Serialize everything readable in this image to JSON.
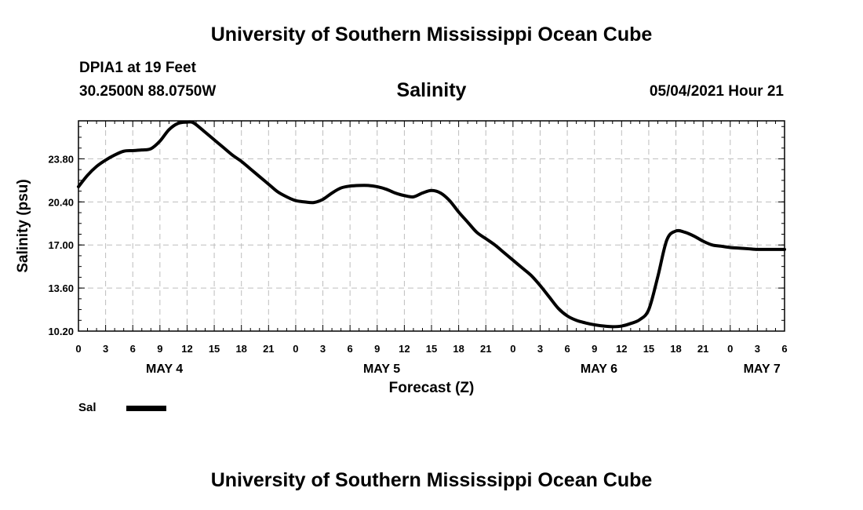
{
  "header": {
    "title_top": "University of Southern Mississippi Ocean Cube",
    "station": "DPIA1 at 19 Feet",
    "coords": "30.2500N  88.0750W",
    "variable_title": "Salinity",
    "datetime": "05/04/2021 Hour 21"
  },
  "footer": {
    "title_bottom": "University of Southern Mississippi Ocean Cube"
  },
  "legend": {
    "label": "Sal",
    "color": "#000000"
  },
  "chart_data": {
    "type": "line",
    "title": "Salinity",
    "xlabel": "Forecast (Z)",
    "ylabel": "Salinity (psu)",
    "x_unit": "hours",
    "xlim": [
      0,
      78
    ],
    "ylim": [
      10.2,
      26.8
    ],
    "yticks": [
      10.2,
      13.6,
      17.0,
      20.4,
      23.8
    ],
    "ytick_labels": [
      "10.20",
      "13.60",
      "17.00",
      "20.40",
      "23.80"
    ],
    "xticks": [
      0,
      3,
      6,
      9,
      12,
      15,
      18,
      21,
      24,
      27,
      30,
      33,
      36,
      39,
      42,
      45,
      48,
      51,
      54,
      57,
      60,
      63,
      66,
      69,
      72,
      75,
      78
    ],
    "xtick_labels": [
      "0",
      "3",
      "6",
      "9",
      "12",
      "15",
      "18",
      "21",
      "0",
      "3",
      "6",
      "9",
      "12",
      "15",
      "18",
      "21",
      "0",
      "3",
      "6",
      "9",
      "12",
      "15",
      "18",
      "21",
      "0",
      "3",
      "6"
    ],
    "day_labels": [
      {
        "label": "MAY 4",
        "x": 9.5
      },
      {
        "label": "MAY 5",
        "x": 33.5
      },
      {
        "label": "MAY 6",
        "x": 57.5
      },
      {
        "label": "MAY 7",
        "x": 75.5
      }
    ],
    "grid": true,
    "series": [
      {
        "name": "Sal",
        "x": [
          0,
          1,
          2,
          3,
          4,
          5,
          6,
          7,
          8,
          9,
          10,
          11,
          12,
          12.5,
          13,
          14,
          15,
          16,
          17,
          18,
          19,
          20,
          21,
          22,
          23,
          24,
          25,
          26,
          27,
          28,
          29,
          30,
          31,
          32,
          33,
          34,
          35,
          36,
          37,
          38,
          39,
          40,
          41,
          42,
          43,
          44,
          45,
          46,
          47,
          48,
          49,
          50,
          51,
          52,
          53,
          54,
          55,
          56,
          57,
          58,
          59,
          60,
          61,
          62,
          63,
          64,
          65,
          66,
          67,
          68,
          69,
          70,
          71,
          72,
          73,
          74,
          75,
          76,
          77,
          78
        ],
        "values": [
          21.6,
          22.5,
          23.2,
          23.7,
          24.1,
          24.4,
          24.45,
          24.5,
          24.6,
          25.2,
          26.1,
          26.6,
          26.7,
          26.7,
          26.5,
          25.9,
          25.3,
          24.7,
          24.1,
          23.6,
          23.0,
          22.4,
          21.8,
          21.2,
          20.8,
          20.5,
          20.4,
          20.35,
          20.6,
          21.1,
          21.5,
          21.65,
          21.7,
          21.7,
          21.6,
          21.4,
          21.1,
          20.9,
          20.8,
          21.1,
          21.3,
          21.1,
          20.5,
          19.6,
          18.8,
          18.0,
          17.5,
          17.0,
          16.4,
          15.8,
          15.2,
          14.6,
          13.8,
          12.9,
          12.0,
          11.4,
          11.05,
          10.85,
          10.7,
          10.6,
          10.55,
          10.6,
          10.8,
          11.1,
          11.9,
          14.5,
          17.4,
          18.1,
          18.0,
          17.7,
          17.3,
          17.0,
          16.9,
          16.8,
          16.75,
          16.7,
          16.65,
          16.65,
          16.65,
          16.65
        ]
      }
    ],
    "line_color": "#000000"
  }
}
